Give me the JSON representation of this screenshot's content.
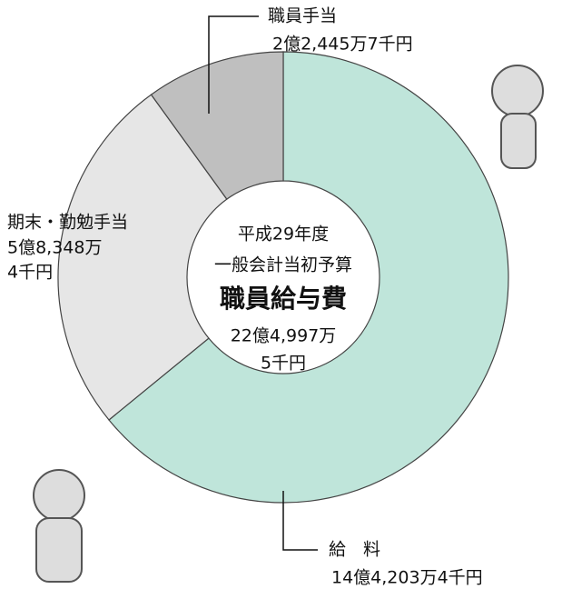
{
  "chart_data": {
    "type": "donut",
    "title": "職員給与費",
    "annotations": [
      "平成29年度",
      "一般会計当初予算"
    ],
    "total": 2249975000,
    "total_label": [
      "22億4,997万",
      "5千円"
    ],
    "categories": [
      "給　料",
      "期末・勤勉手当",
      "職員手当"
    ],
    "values": [
      1442034000,
      583484000,
      224457000
    ],
    "value_labels": [
      [
        "14億4,203万4千円"
      ],
      [
        "5億8,348万",
        "4千円"
      ],
      [
        "2億2,445万7千円"
      ]
    ],
    "colors": [
      "#bfe5da",
      "#e6e6e6",
      "#bfbfbf"
    ]
  }
}
